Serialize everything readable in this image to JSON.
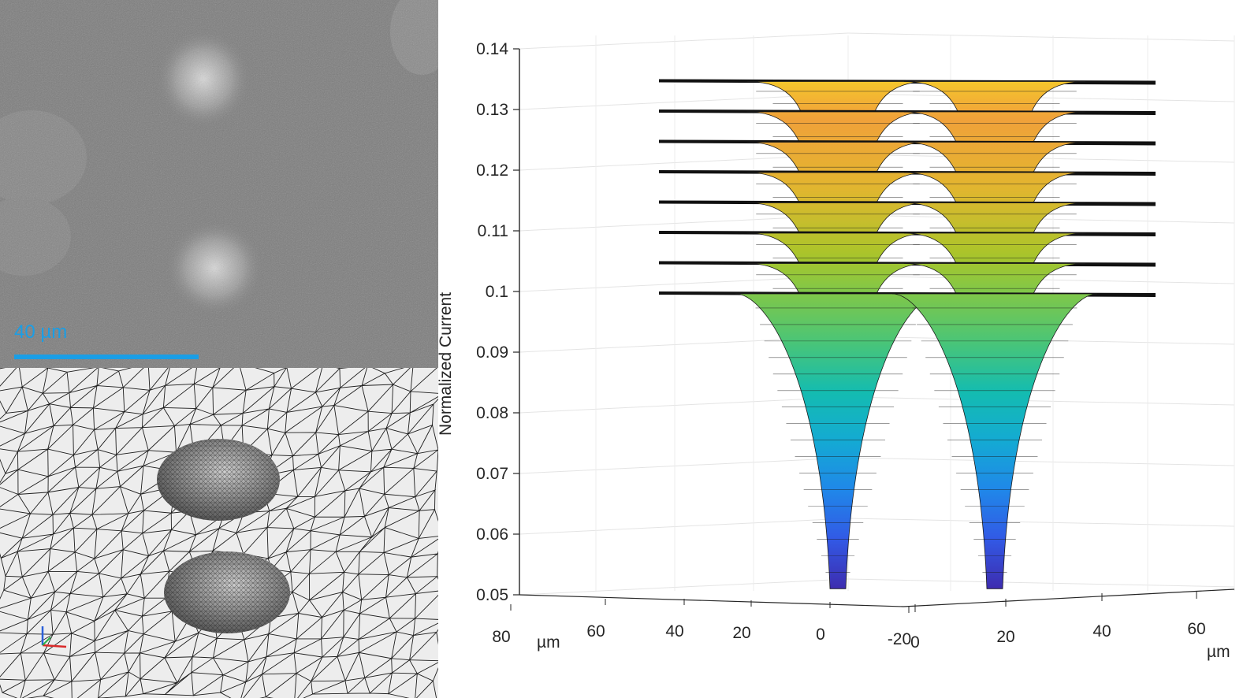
{
  "micrograph": {
    "scalebar_label": "40 µm",
    "scalebar_color": "#1a9ee6"
  },
  "mesh": {
    "triad_icon": "coordinate-triad-icon"
  },
  "chart_data": {
    "type": "surface",
    "title": "",
    "zlabel": "Normalized Current",
    "zlim": [
      0.05,
      0.14
    ],
    "z_ticks": [
      "0.14",
      "0.13",
      "0.12",
      "0.11",
      "0.1",
      "0.09",
      "0.08",
      "0.07",
      "0.06",
      "0.05"
    ],
    "x_ticks": [
      "80",
      "60",
      "40",
      "20",
      "0",
      "-20"
    ],
    "x_unit": "µm",
    "y_ticks": [
      "0",
      "20",
      "40",
      "60"
    ],
    "y_unit": "µm",
    "grid": true,
    "colormap": [
      "#3e26a8",
      "#2f65f3",
      "#14a4e0",
      "#14bcb0",
      "#5ec962",
      "#a9c52a",
      "#e3b52f",
      "#f0a13a",
      "#f9e421"
    ],
    "surfaces": [
      {
        "level": 0.1,
        "min_current": 0.051
      },
      {
        "level": 0.105,
        "min_current": 0.096
      },
      {
        "level": 0.11,
        "min_current": 0.101
      },
      {
        "level": 0.115,
        "min_current": 0.106
      },
      {
        "level": 0.12,
        "min_current": 0.111
      },
      {
        "level": 0.125,
        "min_current": 0.116
      },
      {
        "level": 0.13,
        "min_current": 0.121
      },
      {
        "level": 0.135,
        "min_current": 0.127
      }
    ],
    "wells": [
      {
        "x": 0
      },
      {
        "x": 20
      }
    ]
  }
}
